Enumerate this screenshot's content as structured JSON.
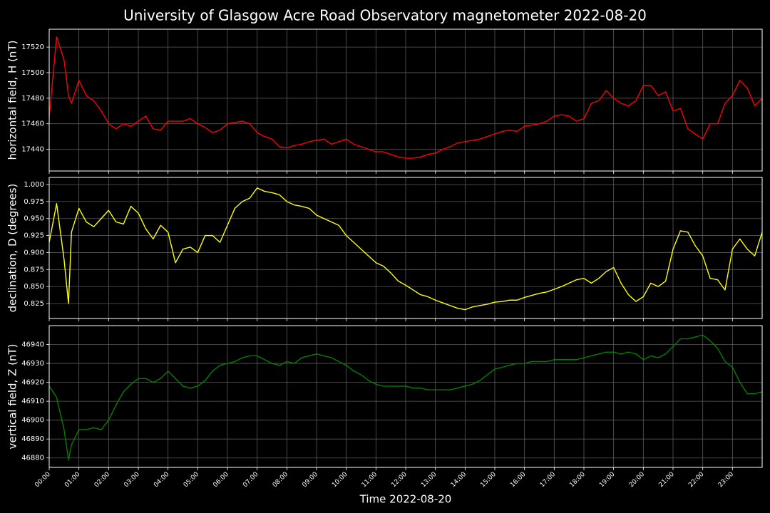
{
  "title": "University of Glasgow Acre Road Observatory magnetometer 2022-08-20",
  "chart_data": [
    {
      "type": "line",
      "ylabel": "horizontal field, H (nT)",
      "grid": true,
      "xlim": [
        0,
        24
      ],
      "ylim": [
        17423,
        17534
      ],
      "yticks": [
        17440,
        17460,
        17480,
        17500,
        17520
      ],
      "x": [
        0,
        0.25,
        0.5,
        0.65,
        0.75,
        1,
        1.25,
        1.5,
        1.75,
        2,
        2.25,
        2.5,
        2.75,
        3,
        3.25,
        3.5,
        3.75,
        4,
        4.25,
        4.5,
        4.75,
        5,
        5.25,
        5.5,
        5.75,
        6,
        6.25,
        6.5,
        6.75,
        7,
        7.25,
        7.5,
        7.75,
        8,
        8.25,
        8.5,
        8.75,
        9,
        9.25,
        9.5,
        9.75,
        10,
        10.25,
        10.5,
        10.75,
        11,
        11.25,
        11.5,
        11.75,
        12,
        12.25,
        12.5,
        12.75,
        13,
        13.25,
        13.5,
        13.75,
        14,
        14.25,
        14.5,
        14.75,
        15,
        15.25,
        15.5,
        15.75,
        16,
        16.25,
        16.5,
        16.75,
        17,
        17.25,
        17.5,
        17.75,
        18,
        18.25,
        18.5,
        18.75,
        19,
        19.25,
        19.5,
        19.75,
        20,
        20.25,
        20.5,
        20.75,
        21,
        21.25,
        21.5,
        21.75,
        22,
        22.25,
        22.5,
        22.75,
        23,
        23.25,
        23.5,
        23.75,
        24
      ],
      "series": [
        {
          "name": "H",
          "color": "#ff0000",
          "values": [
            17465,
            17528,
            17510,
            17482,
            17476,
            17494,
            17482,
            17478,
            17470,
            17460,
            17456,
            17460,
            17458,
            17462,
            17466,
            17456,
            17455,
            17462,
            17462,
            17462,
            17464,
            17460,
            17457,
            17453,
            17455,
            17460,
            17461,
            17462,
            17460,
            17453,
            17450,
            17448,
            17442,
            17441,
            17443,
            17444,
            17446,
            17447,
            17448,
            17444,
            17446,
            17448,
            17444,
            17442,
            17440,
            17438,
            17438,
            17436,
            17434,
            17433,
            17433,
            17434,
            17436,
            17437,
            17440,
            17442,
            17445,
            17446,
            17447,
            17448,
            17450,
            17452,
            17454,
            17455,
            17454,
            17458,
            17459,
            17460,
            17462,
            17466,
            17467,
            17466,
            17462,
            17464,
            17476,
            17478,
            17486,
            17480,
            17476,
            17474,
            17478,
            17490,
            17490,
            17482,
            17485,
            17470,
            17472,
            17456,
            17452,
            17448,
            17460,
            17460,
            17476,
            17482,
            17494,
            17488,
            17474,
            17480
          ]
        }
      ]
    },
    {
      "type": "line",
      "ylabel": "declination, D (degrees)",
      "grid": true,
      "xlim": [
        0,
        24
      ],
      "ylim": [
        0.803,
        1.0105
      ],
      "yticks": [
        {
          "value": 0.825,
          "label": "0.825"
        },
        {
          "value": 0.85,
          "label": "0.850"
        },
        {
          "value": 0.875,
          "label": "0.875"
        },
        {
          "value": 0.9,
          "label": "0.900"
        },
        {
          "value": 0.925,
          "label": "0.925"
        },
        {
          "value": 0.95,
          "label": "0.950"
        },
        {
          "value": 0.975,
          "label": "0.975"
        },
        {
          "value": 1.0,
          "label": "1.000"
        }
      ],
      "x": [
        0,
        0.25,
        0.5,
        0.65,
        0.75,
        1,
        1.25,
        1.5,
        1.75,
        2,
        2.25,
        2.5,
        2.75,
        3,
        3.25,
        3.5,
        3.75,
        4,
        4.25,
        4.5,
        4.75,
        5,
        5.25,
        5.5,
        5.75,
        6,
        6.25,
        6.5,
        6.75,
        7,
        7.25,
        7.5,
        7.75,
        8,
        8.25,
        8.5,
        8.75,
        9,
        9.25,
        9.5,
        9.75,
        10,
        10.25,
        10.5,
        10.75,
        11,
        11.25,
        11.5,
        11.75,
        12,
        12.25,
        12.5,
        12.75,
        13,
        13.25,
        13.5,
        13.75,
        14,
        14.25,
        14.5,
        14.75,
        15,
        15.25,
        15.5,
        15.75,
        16,
        16.25,
        16.5,
        16.75,
        17,
        17.25,
        17.5,
        17.75,
        18,
        18.25,
        18.5,
        18.75,
        19,
        19.25,
        19.5,
        19.75,
        20,
        20.25,
        20.5,
        20.75,
        21,
        21.25,
        21.5,
        21.75,
        22,
        22.25,
        22.5,
        22.75,
        23,
        23.25,
        23.5,
        23.75,
        24
      ],
      "series": [
        {
          "name": "D",
          "color": "#ffff00",
          "values": [
            0.915,
            0.972,
            0.89,
            0.825,
            0.93,
            0.965,
            0.945,
            0.938,
            0.95,
            0.962,
            0.945,
            0.942,
            0.968,
            0.958,
            0.935,
            0.92,
            0.94,
            0.93,
            0.885,
            0.905,
            0.908,
            0.9,
            0.925,
            0.925,
            0.915,
            0.94,
            0.965,
            0.975,
            0.98,
            0.995,
            0.99,
            0.988,
            0.985,
            0.975,
            0.97,
            0.968,
            0.965,
            0.955,
            0.95,
            0.945,
            0.94,
            0.925,
            0.915,
            0.905,
            0.895,
            0.885,
            0.88,
            0.87,
            0.858,
            0.852,
            0.845,
            0.838,
            0.835,
            0.83,
            0.826,
            0.822,
            0.818,
            0.816,
            0.82,
            0.822,
            0.824,
            0.827,
            0.828,
            0.83,
            0.83,
            0.834,
            0.837,
            0.84,
            0.842,
            0.846,
            0.85,
            0.855,
            0.86,
            0.862,
            0.855,
            0.862,
            0.872,
            0.878,
            0.855,
            0.838,
            0.828,
            0.835,
            0.855,
            0.85,
            0.858,
            0.905,
            0.932,
            0.93,
            0.91,
            0.895,
            0.862,
            0.86,
            0.845,
            0.905,
            0.92,
            0.905,
            0.895,
            0.93
          ]
        }
      ]
    },
    {
      "type": "line",
      "ylabel": "vertical field, Z (nT)",
      "xlabel": "Time 2022-08-20",
      "grid": true,
      "xlim": [
        0,
        24
      ],
      "ylim": [
        46875,
        46950
      ],
      "yticks": [
        46880,
        46890,
        46900,
        46910,
        46920,
        46930,
        46940
      ],
      "xticks": [
        {
          "value": 0,
          "label": "00:00"
        },
        {
          "value": 1,
          "label": "01:00"
        },
        {
          "value": 2,
          "label": "02:00"
        },
        {
          "value": 3,
          "label": "03:00"
        },
        {
          "value": 4,
          "label": "04:00"
        },
        {
          "value": 5,
          "label": "05:00"
        },
        {
          "value": 6,
          "label": "06:00"
        },
        {
          "value": 7,
          "label": "07:00"
        },
        {
          "value": 8,
          "label": "08:00"
        },
        {
          "value": 9,
          "label": "09:00"
        },
        {
          "value": 10,
          "label": "10:00"
        },
        {
          "value": 11,
          "label": "11:00"
        },
        {
          "value": 12,
          "label": "12:00"
        },
        {
          "value": 13,
          "label": "13:00"
        },
        {
          "value": 14,
          "label": "14:00"
        },
        {
          "value": 15,
          "label": "15:00"
        },
        {
          "value": 16,
          "label": "16:00"
        },
        {
          "value": 17,
          "label": "17:00"
        },
        {
          "value": 18,
          "label": "18:00"
        },
        {
          "value": 19,
          "label": "19:00"
        },
        {
          "value": 20,
          "label": "20:00"
        },
        {
          "value": 21,
          "label": "21:00"
        },
        {
          "value": 22,
          "label": "22:00"
        },
        {
          "value": 23,
          "label": "23:00"
        }
      ],
      "x": [
        0,
        0.25,
        0.5,
        0.65,
        0.75,
        1,
        1.25,
        1.5,
        1.75,
        2,
        2.25,
        2.5,
        2.75,
        3,
        3.25,
        3.5,
        3.75,
        4,
        4.25,
        4.5,
        4.75,
        5,
        5.25,
        5.5,
        5.75,
        6,
        6.25,
        6.5,
        6.75,
        7,
        7.25,
        7.5,
        7.75,
        8,
        8.25,
        8.5,
        8.75,
        9,
        9.25,
        9.5,
        9.75,
        10,
        10.25,
        10.5,
        10.75,
        11,
        11.25,
        11.5,
        11.75,
        12,
        12.25,
        12.5,
        12.75,
        13,
        13.25,
        13.5,
        13.75,
        14,
        14.25,
        14.5,
        14.75,
        15,
        15.25,
        15.5,
        15.75,
        16,
        16.25,
        16.5,
        16.75,
        17,
        17.25,
        17.5,
        17.75,
        18,
        18.25,
        18.5,
        18.75,
        19,
        19.25,
        19.5,
        19.75,
        20,
        20.25,
        20.5,
        20.75,
        21,
        21.25,
        21.5,
        21.75,
        22,
        22.25,
        22.5,
        22.75,
        23,
        23.25,
        23.5,
        23.75,
        24
      ],
      "series": [
        {
          "name": "Z",
          "color": "#008000",
          "values": [
            46918,
            46912,
            46895,
            46879,
            46887,
            46895,
            46895,
            46896,
            46895,
            46900,
            46908,
            46915,
            46919,
            46922,
            46922,
            46920,
            46922,
            46926,
            46922,
            46918,
            46917,
            46918,
            46921,
            46926,
            46929,
            46930,
            46931,
            46933,
            46934,
            46934,
            46932,
            46930,
            46929,
            46931,
            46930,
            46933,
            46934,
            46935,
            46934,
            46933,
            46931,
            46929,
            46926,
            46924,
            46921,
            46919,
            46918,
            46918,
            46918,
            46918,
            46917,
            46917,
            46916,
            46916,
            46916,
            46916,
            46917,
            46918,
            46919,
            46921,
            46924,
            46927,
            46928,
            46929,
            46930,
            46930,
            46931,
            46931,
            46931,
            46932,
            46932,
            46932,
            46932,
            46933,
            46934,
            46935,
            46936,
            46936,
            46935,
            46936,
            46935,
            46932,
            46934,
            46933,
            46935,
            46939,
            46943,
            46943,
            46944,
            46945,
            46942,
            46938,
            46931,
            46928,
            46920,
            46914,
            46914,
            46915
          ]
        }
      ]
    }
  ]
}
